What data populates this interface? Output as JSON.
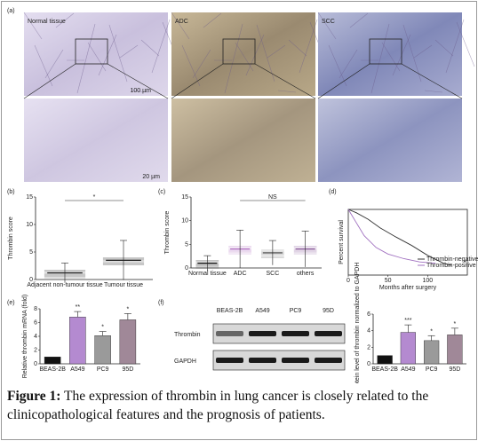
{
  "panels": {
    "a": {
      "label": "(a)",
      "images": [
        {
          "title": "Normal tissue",
          "scale_top": "100 µm",
          "scale_bottom": "20 µm"
        },
        {
          "title": "ADC"
        },
        {
          "title": "SCC"
        }
      ]
    },
    "b": {
      "label": "(b)",
      "type": "dot",
      "ylabel": "Thrombin score",
      "ylim": [
        0,
        15
      ],
      "yticks": [
        0,
        5,
        10,
        15
      ],
      "categories": [
        "Adjacent non-tumour tissue",
        "Tumour tissue"
      ],
      "values": [
        1.2,
        3.5
      ],
      "errors": [
        1.8,
        3.6
      ],
      "colors": [
        "#222222",
        "#222222"
      ],
      "annotation": "*"
    },
    "c": {
      "label": "(c)",
      "type": "dot",
      "ylabel": "Thrombin score",
      "ylim": [
        0,
        15
      ],
      "yticks": [
        0,
        5,
        10,
        15
      ],
      "categories": [
        "Normal tissue",
        "ADC",
        "SCC",
        "others"
      ],
      "values": [
        1.0,
        4.0,
        3.2,
        4.0
      ],
      "errors": [
        1.6,
        4.0,
        2.6,
        3.8
      ],
      "colors": [
        "#111111",
        "#b070c0",
        "#666666",
        "#8a5a9a"
      ],
      "annotation": "NS"
    },
    "d": {
      "label": "(d)",
      "type": "survival",
      "ylabel": "Percent survival",
      "xlabel": "Months after surgery",
      "xlim": [
        0,
        150
      ],
      "xticks": [
        0,
        50,
        100
      ],
      "ylim": [
        0,
        100
      ],
      "annotation": "*",
      "series": [
        {
          "name": "Thrombin-negative",
          "color": "#333333",
          "x": [
            0,
            10,
            25,
            40,
            60,
            80,
            100,
            120,
            130
          ],
          "y": [
            100,
            95,
            85,
            72,
            58,
            45,
            30,
            18,
            15
          ]
        },
        {
          "name": "Thrombin-positive",
          "color": "#a070c0",
          "x": [
            0,
            10,
            20,
            35,
            50,
            70,
            90,
            110
          ],
          "y": [
            100,
            80,
            60,
            42,
            32,
            25,
            20,
            18
          ]
        }
      ]
    },
    "e": {
      "label": "(e)",
      "type": "bar",
      "ylabel": "Relative thrombin mRNA (fold)",
      "ylim": [
        0,
        8
      ],
      "yticks": [
        0,
        2,
        4,
        6,
        8
      ],
      "categories": [
        "BEAS-2B",
        "A549",
        "PC9",
        "95D"
      ],
      "values": [
        1,
        6.8,
        4.1,
        6.4
      ],
      "errors": [
        0,
        0.8,
        0.6,
        0.9
      ],
      "colors": [
        "#111111",
        "#b48ad0",
        "#9a9a9a",
        "#a08898"
      ],
      "stars": [
        null,
        "**",
        "*",
        "*"
      ]
    },
    "f": {
      "label": "(f)",
      "blot": {
        "lanes": [
          "BEAS-2B",
          "A549",
          "PC9",
          "95D"
        ],
        "rows": [
          "Thrombin",
          "GAPDH"
        ]
      },
      "type": "bar",
      "ylabel": "Relative protein level of thrombin normalized to GAPDH",
      "ylim": [
        0,
        6
      ],
      "yticks": [
        0,
        2,
        4,
        6
      ],
      "categories": [
        "BEAS-2B",
        "A549",
        "PC9",
        "95D"
      ],
      "values": [
        1,
        3.8,
        2.8,
        3.5
      ],
      "errors": [
        0,
        0.9,
        0.6,
        0.8
      ],
      "colors": [
        "#111111",
        "#b48ad0",
        "#9a9a9a",
        "#a08898"
      ],
      "stars": [
        null,
        "***",
        "*",
        "*"
      ]
    }
  },
  "caption": {
    "label": "Figure 1:",
    "text": "The expression of thrombin in lung cancer is closely related to the clinicopathological features and the prognosis of patients."
  }
}
